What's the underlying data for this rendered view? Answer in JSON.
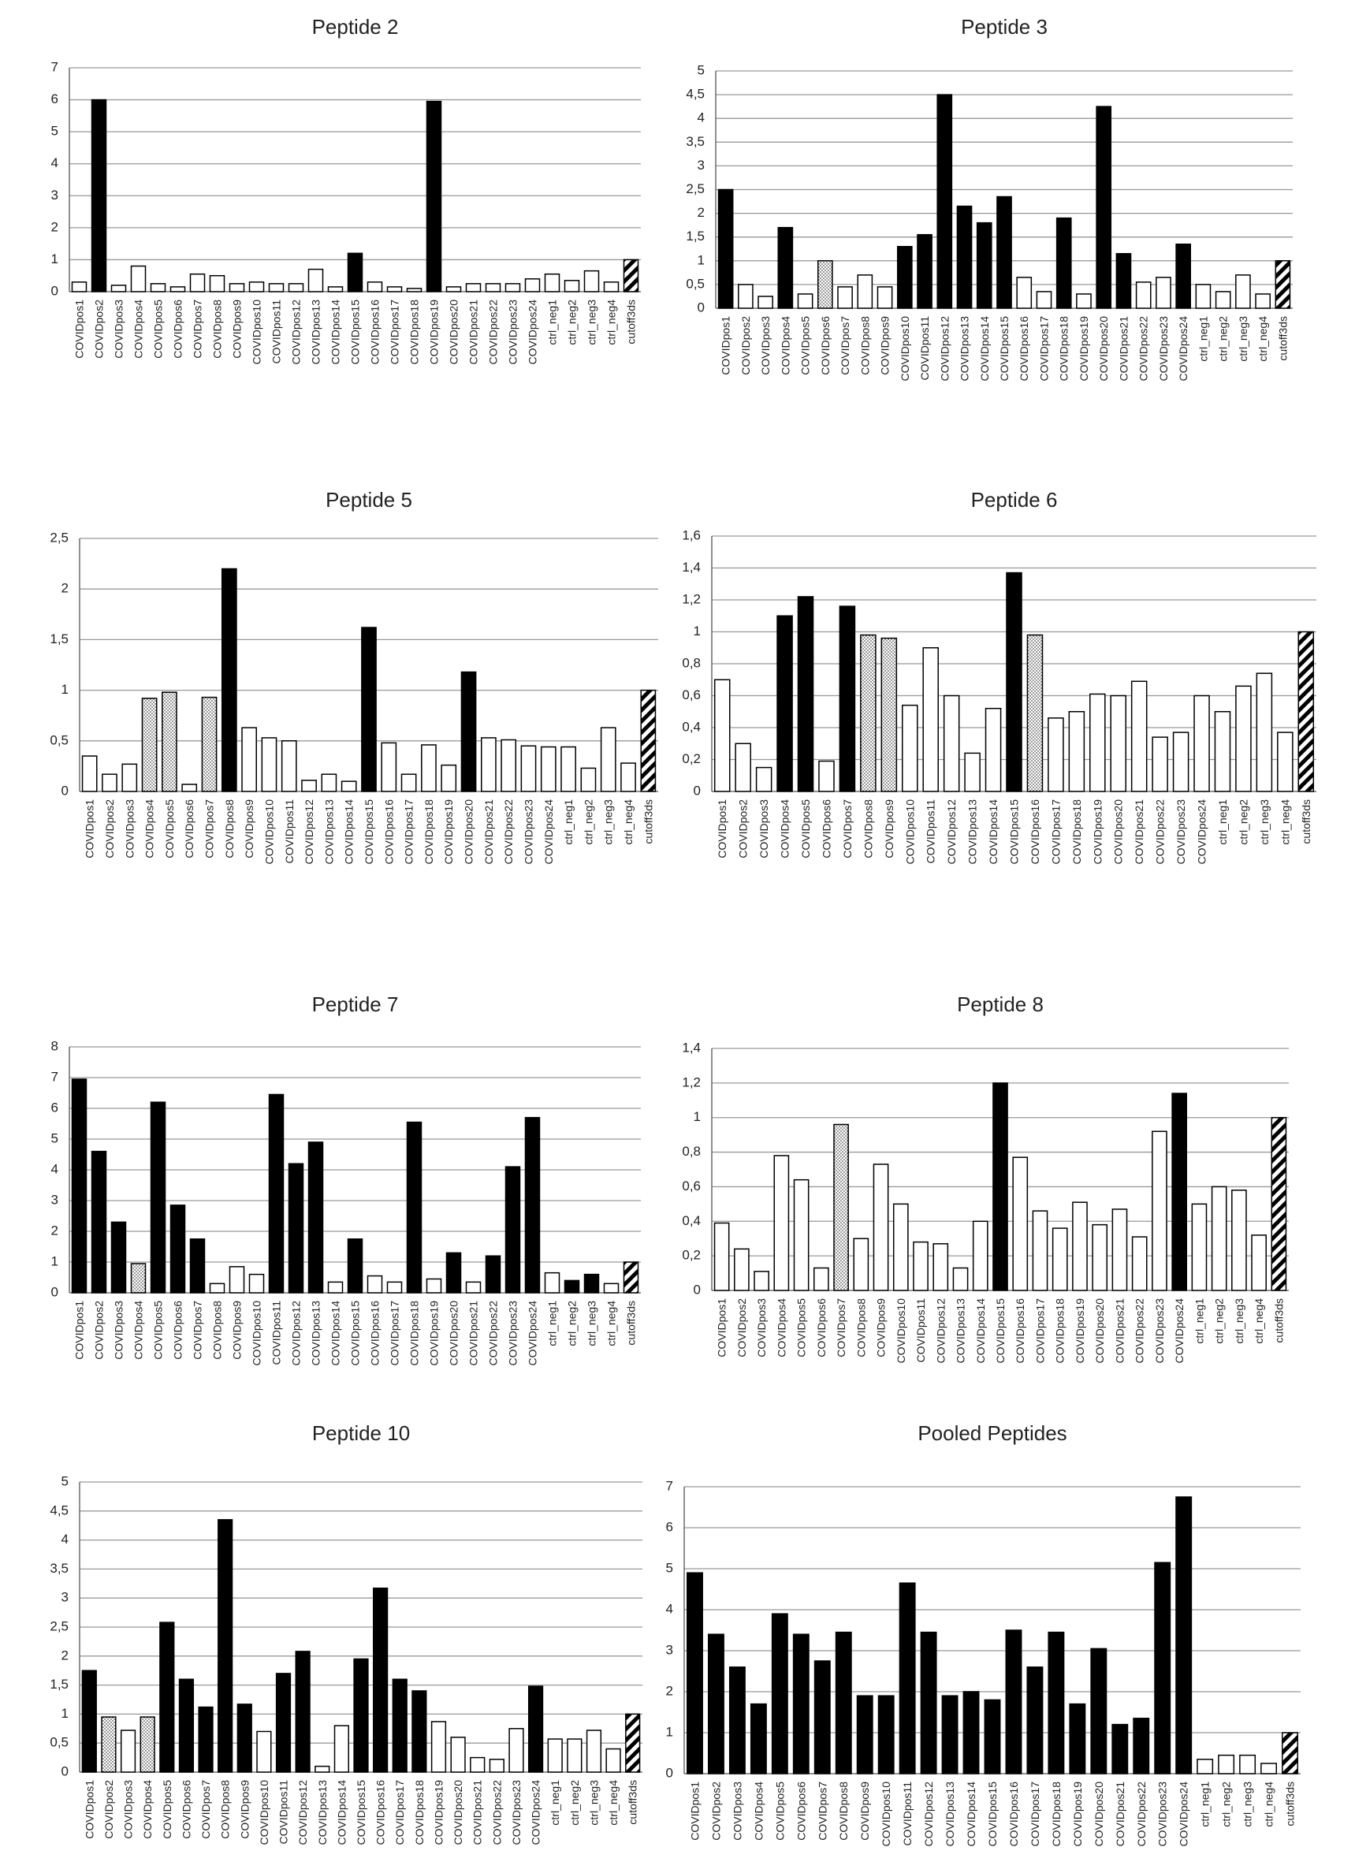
{
  "colors": {
    "positive": "#000000",
    "negative": "#ffffff",
    "borderline_pattern": "dots",
    "cutoff_pattern": "diagonal-stripes",
    "gridline": "#999999"
  },
  "chart_data": [
    {
      "type": "bar",
      "title": "Peptide 2",
      "xlabel": "",
      "ylabel": "",
      "ylim": [
        0,
        7
      ],
      "yticks": [
        "0",
        "1",
        "2",
        "3",
        "4",
        "5",
        "6",
        "7"
      ],
      "grid": true,
      "legend": "none",
      "categories": [
        "COVIDpos1",
        "COVIDpos2",
        "COVIDpos3",
        "COVIDpos4",
        "COVIDpos5",
        "COVIDpos6",
        "COVIDpos7",
        "COVIDpos8",
        "COVIDpos9",
        "COVIDpos10",
        "COVIDpos11",
        "COVIDpos12",
        "COVIDpos13",
        "COVIDpos14",
        "COVIDpos15",
        "COVIDpos16",
        "COVIDpos17",
        "COVIDpos18",
        "COVIDpos19",
        "COVIDpos20",
        "COVIDpos21",
        "COVIDpos22",
        "COVIDpos23",
        "COVIDpos24",
        "ctrl_neg1",
        "ctrl_neg2",
        "ctrl_neg3",
        "ctrl_neg4",
        "cutoff3ds"
      ],
      "values": [
        0.3,
        6.0,
        0.2,
        0.8,
        0.25,
        0.15,
        0.55,
        0.5,
        0.25,
        0.3,
        0.25,
        0.25,
        0.7,
        0.15,
        1.2,
        0.3,
        0.15,
        0.1,
        5.95,
        0.15,
        0.25,
        0.25,
        0.25,
        0.4,
        0.55,
        0.35,
        0.65,
        0.3,
        1.0
      ],
      "fills": [
        "w",
        "b",
        "w",
        "w",
        "w",
        "w",
        "w",
        "w",
        "w",
        "w",
        "w",
        "w",
        "w",
        "w",
        "b",
        "w",
        "w",
        "w",
        "b",
        "w",
        "w",
        "w",
        "w",
        "w",
        "w",
        "w",
        "w",
        "w",
        "h"
      ]
    },
    {
      "type": "bar",
      "title": "Peptide 3",
      "xlabel": "",
      "ylabel": "",
      "ylim": [
        0,
        5
      ],
      "yticks": [
        "0",
        "0,5",
        "1",
        "1,5",
        "2",
        "2,5",
        "3",
        "3,5",
        "4",
        "4,5",
        "5"
      ],
      "grid": true,
      "legend": "none",
      "categories": [
        "COVIDpos1",
        "COVIDpos2",
        "COVIDpos3",
        "COVIDpos4",
        "COVIDpos5",
        "COVIDpos6",
        "COVIDpos7",
        "COVIDpos8",
        "COVIDpos9",
        "COVIDpos10",
        "COVIDpos11",
        "COVIDpos12",
        "COVIDpos13",
        "COVIDpos14",
        "COVIDpos15",
        "COVIDpos16",
        "COVIDpos17",
        "COVIDpos18",
        "COVIDpos19",
        "COVIDpos20",
        "COVIDpos21",
        "COVIDpos22",
        "COVIDpos23",
        "COVIDpos24",
        "ctrl_neg1",
        "ctrl_neg2",
        "ctrl_neg3",
        "ctrl_neg4",
        "cutoff3ds"
      ],
      "values": [
        2.5,
        0.5,
        0.25,
        1.7,
        0.3,
        1.0,
        0.45,
        0.7,
        0.45,
        1.3,
        1.55,
        4.5,
        2.15,
        1.8,
        2.35,
        0.65,
        0.35,
        1.9,
        0.3,
        4.25,
        1.15,
        0.55,
        0.65,
        1.35,
        0.5,
        0.35,
        0.7,
        0.3,
        1.0
      ],
      "fills": [
        "b",
        "w",
        "w",
        "b",
        "w",
        "d",
        "w",
        "w",
        "w",
        "b",
        "b",
        "b",
        "b",
        "b",
        "b",
        "w",
        "w",
        "b",
        "w",
        "b",
        "b",
        "w",
        "w",
        "b",
        "w",
        "w",
        "w",
        "w",
        "h"
      ]
    },
    {
      "type": "bar",
      "title": "Peptide 5",
      "xlabel": "",
      "ylabel": "",
      "ylim": [
        0,
        2.5
      ],
      "yticks": [
        "0",
        "0,5",
        "1",
        "1,5",
        "2",
        "2,5"
      ],
      "grid": true,
      "legend": "none",
      "categories": [
        "COVIDpos1",
        "COVIDpos2",
        "COVIDpos3",
        "COVIDpos4",
        "COVIDpos5",
        "COVIDpos6",
        "COVIDpos7",
        "COVIDpos8",
        "COVIDpos9",
        "COVIDpos10",
        "COVIDpos11",
        "COVIDpos12",
        "COVIDpos13",
        "COVIDpos14",
        "COVIDpos15",
        "COVIDpos16",
        "COVIDpos17",
        "COVIDpos18",
        "COVIDpos19",
        "COVIDpos20",
        "COVIDpos21",
        "COVIDpos22",
        "COVIDpos23",
        "COVIDpos24",
        "ctrl_neg1",
        "ctrl_neg2",
        "ctrl_neg3",
        "ctrl_neg4",
        "cutoff3ds"
      ],
      "values": [
        0.35,
        0.17,
        0.27,
        0.92,
        0.98,
        0.07,
        0.93,
        2.2,
        0.63,
        0.53,
        0.5,
        0.11,
        0.17,
        0.1,
        1.62,
        0.48,
        0.17,
        0.46,
        0.26,
        1.18,
        0.53,
        0.51,
        0.45,
        0.44,
        0.44,
        0.23,
        0.63,
        0.28,
        1.0
      ],
      "fills": [
        "w",
        "w",
        "w",
        "d",
        "d",
        "w",
        "d",
        "b",
        "w",
        "w",
        "w",
        "w",
        "w",
        "w",
        "b",
        "w",
        "w",
        "w",
        "w",
        "b",
        "w",
        "w",
        "w",
        "w",
        "w",
        "w",
        "w",
        "w",
        "h"
      ]
    },
    {
      "type": "bar",
      "title": "Peptide 6",
      "xlabel": "",
      "ylabel": "",
      "ylim": [
        0,
        1.6
      ],
      "yticks": [
        "0",
        "0,2",
        "0,4",
        "0,6",
        "0,8",
        "1",
        "1,2",
        "1,4",
        "1,6"
      ],
      "grid": true,
      "legend": "none",
      "categories": [
        "COVIDpos1",
        "COVIDpos2",
        "COVIDpos3",
        "COVIDpos4",
        "COVIDpos5",
        "COVIDpos6",
        "COVIDpos7",
        "COVIDpos8",
        "COVIDpos9",
        "COVIDpos10",
        "COVIDpos11",
        "COVIDpos12",
        "COVIDpos13",
        "COVIDpos14",
        "COVIDpos15",
        "COVIDpos16",
        "COVIDpos17",
        "COVIDpos18",
        "COVIDpos19",
        "COVIDpos20",
        "COVIDpos21",
        "COVIDpos22",
        "COVIDpos23",
        "COVIDpos24",
        "ctrl_neg1",
        "ctrl_neg2",
        "ctrl_neg3",
        "ctrl_neg4",
        "cutoff3ds"
      ],
      "values": [
        0.7,
        0.3,
        0.15,
        1.1,
        1.22,
        0.19,
        1.16,
        0.98,
        0.96,
        0.54,
        0.9,
        0.6,
        0.24,
        0.52,
        1.37,
        0.98,
        0.46,
        0.5,
        0.61,
        0.6,
        0.69,
        0.34,
        0.37,
        0.6,
        0.5,
        0.66,
        0.74,
        0.37,
        1.0
      ],
      "fills": [
        "w",
        "w",
        "w",
        "b",
        "b",
        "w",
        "b",
        "d",
        "d",
        "w",
        "w",
        "w",
        "w",
        "w",
        "b",
        "d",
        "w",
        "w",
        "w",
        "w",
        "w",
        "w",
        "w",
        "w",
        "w",
        "w",
        "w",
        "w",
        "h"
      ]
    },
    {
      "type": "bar",
      "title": "Peptide 7",
      "xlabel": "",
      "ylabel": "",
      "ylim": [
        0,
        8
      ],
      "yticks": [
        "0",
        "1",
        "2",
        "3",
        "4",
        "5",
        "6",
        "7",
        "8"
      ],
      "grid": true,
      "legend": "none",
      "categories": [
        "COVIDpos1",
        "COVIDpos2",
        "COVIDpos3",
        "COVIDpos4",
        "COVIDpos5",
        "COVIDpos6",
        "COVIDpos7",
        "COVIDpos8",
        "COVIDpos9",
        "COVIDpos10",
        "COVIDpos11",
        "COVIDpos12",
        "COVIDpos13",
        "COVIDpos14",
        "COVIDpos15",
        "COVIDpos16",
        "COVIDpos17",
        "COVIDpos18",
        "COVIDpos19",
        "COVIDpos20",
        "COVIDpos21",
        "COVIDpos22",
        "COVIDpos23",
        "COVIDpos24",
        "ctrl_neg1",
        "ctrl_neg2",
        "ctrl_neg3",
        "ctrl_neg4",
        "cutoff3ds"
      ],
      "values": [
        6.95,
        4.6,
        2.3,
        0.95,
        6.2,
        2.85,
        1.75,
        0.3,
        0.85,
        0.6,
        6.45,
        4.2,
        4.9,
        0.35,
        1.75,
        0.55,
        0.35,
        5.55,
        0.45,
        1.3,
        0.35,
        1.2,
        4.1,
        5.7,
        0.65,
        0.4,
        0.6,
        0.3,
        1.0
      ],
      "fills": [
        "b",
        "b",
        "b",
        "d",
        "b",
        "b",
        "b",
        "w",
        "w",
        "w",
        "b",
        "b",
        "b",
        "w",
        "b",
        "w",
        "w",
        "b",
        "w",
        "b",
        "w",
        "b",
        "b",
        "b",
        "w",
        "b",
        "b",
        "w",
        "h"
      ]
    },
    {
      "type": "bar",
      "title": "Peptide 8",
      "xlabel": "",
      "ylabel": "",
      "ylim": [
        0,
        1.4
      ],
      "yticks": [
        "0",
        "0,2",
        "0,4",
        "0,6",
        "0,8",
        "1",
        "1,2",
        "1,4"
      ],
      "grid": true,
      "legend": "none",
      "categories": [
        "COVIDpos1",
        "COVIDpos2",
        "COVIDpos3",
        "COVIDpos4",
        "COVIDpos5",
        "COVIDpos6",
        "COVIDpos7",
        "COVIDpos8",
        "COVIDpos9",
        "COVIDpos10",
        "COVIDpos11",
        "COVIDpos12",
        "COVIDpos13",
        "COVIDpos14",
        "COVIDpos15",
        "COVIDpos16",
        "COVIDpos17",
        "COVIDpos18",
        "COVIDpos19",
        "COVIDpos20",
        "COVIDpos21",
        "COVIDpos22",
        "COVIDpos23",
        "COVIDpos24",
        "ctrl_neg1",
        "ctrl_neg2",
        "ctrl_neg3",
        "ctrl_neg4",
        "cutoff3ds"
      ],
      "values": [
        0.39,
        0.24,
        0.11,
        0.78,
        0.64,
        0.13,
        0.96,
        0.3,
        0.73,
        0.5,
        0.28,
        0.27,
        0.13,
        0.4,
        1.2,
        0.77,
        0.46,
        0.36,
        0.51,
        0.38,
        0.47,
        0.31,
        0.92,
        1.14,
        0.5,
        0.6,
        0.58,
        0.32,
        1.0
      ],
      "fills": [
        "w",
        "w",
        "w",
        "w",
        "w",
        "w",
        "d",
        "w",
        "w",
        "w",
        "w",
        "w",
        "w",
        "w",
        "b",
        "w",
        "w",
        "w",
        "w",
        "w",
        "w",
        "w",
        "w",
        "b",
        "w",
        "w",
        "w",
        "w",
        "h"
      ]
    },
    {
      "type": "bar",
      "title": "Peptide 10",
      "xlabel": "",
      "ylabel": "",
      "ylim": [
        0,
        5
      ],
      "yticks": [
        "0",
        "0,5",
        "1",
        "1,5",
        "2",
        "2,5",
        "3",
        "3,5",
        "4",
        "4,5",
        "5"
      ],
      "grid": true,
      "legend": "none",
      "categories": [
        "COVIDpos1",
        "COVIDpos2",
        "COVIDpos3",
        "COVIDpos4",
        "COVIDpos5",
        "COVIDpos6",
        "COVIDpos7",
        "COVIDpos8",
        "COVIDpos9",
        "COVIDpos10",
        "COVIDpos11",
        "COVIDpos12",
        "COVIDpos13",
        "COVIDpos14",
        "COVIDpos15",
        "COVIDpos16",
        "COVIDpos17",
        "COVIDpos18",
        "COVIDpos19",
        "COVIDpos20",
        "COVIDpos21",
        "COVIDpos22",
        "COVIDpos23",
        "COVIDpos24",
        "ctrl_neg1",
        "ctrl_neg2",
        "ctrl_neg3",
        "ctrl_neg4",
        "cutoff3ds"
      ],
      "values": [
        1.75,
        0.95,
        0.72,
        0.95,
        2.58,
        1.6,
        1.12,
        4.35,
        1.17,
        0.7,
        1.7,
        2.08,
        0.1,
        0.8,
        1.95,
        3.17,
        1.6,
        1.4,
        0.87,
        0.6,
        0.25,
        0.22,
        0.75,
        1.48,
        0.57,
        0.57,
        0.72,
        0.4,
        1.0
      ],
      "fills": [
        "b",
        "d",
        "w",
        "d",
        "b",
        "b",
        "b",
        "b",
        "b",
        "w",
        "b",
        "b",
        "w",
        "w",
        "b",
        "b",
        "b",
        "b",
        "w",
        "w",
        "w",
        "w",
        "w",
        "b",
        "w",
        "w",
        "w",
        "w",
        "h"
      ]
    },
    {
      "type": "bar",
      "title": "Pooled Peptides",
      "xlabel": "",
      "ylabel": "",
      "ylim": [
        0,
        7
      ],
      "yticks": [
        "0",
        "1",
        "2",
        "3",
        "4",
        "5",
        "6",
        "7"
      ],
      "grid": true,
      "legend": "none",
      "categories": [
        "COVIDpos1",
        "COVIDpos2",
        "COVIDpos3",
        "COVIDpos4",
        "COVIDpos5",
        "COVIDpos6",
        "COVIDpos7",
        "COVIDpos8",
        "COVIDpos9",
        "COVIDpos10",
        "COVIDpos11",
        "COVIDpos12",
        "COVIDpos13",
        "COVIDpos14",
        "COVIDpos15",
        "COVIDpos16",
        "COVIDpos17",
        "COVIDpos18",
        "COVIDpos19",
        "COVIDpos20",
        "COVIDpos21",
        "COVIDpos22",
        "COVIDpos23",
        "COVIDpos24",
        "ctrl_neg1",
        "ctrl_neg2",
        "ctrl_neg3",
        "ctrl_neg4",
        "cutoff3ds"
      ],
      "values": [
        4.9,
        3.4,
        2.6,
        1.7,
        3.9,
        3.4,
        2.75,
        3.45,
        1.9,
        1.9,
        4.65,
        3.45,
        1.9,
        2.0,
        1.8,
        3.5,
        2.6,
        3.45,
        1.7,
        3.05,
        1.2,
        1.35,
        5.15,
        6.75,
        0.35,
        0.45,
        0.45,
        0.25,
        1.0
      ],
      "fills": [
        "b",
        "b",
        "b",
        "b",
        "b",
        "b",
        "b",
        "b",
        "b",
        "b",
        "b",
        "b",
        "b",
        "b",
        "b",
        "b",
        "b",
        "b",
        "b",
        "b",
        "b",
        "b",
        "b",
        "b",
        "w",
        "w",
        "w",
        "w",
        "h"
      ]
    }
  ]
}
